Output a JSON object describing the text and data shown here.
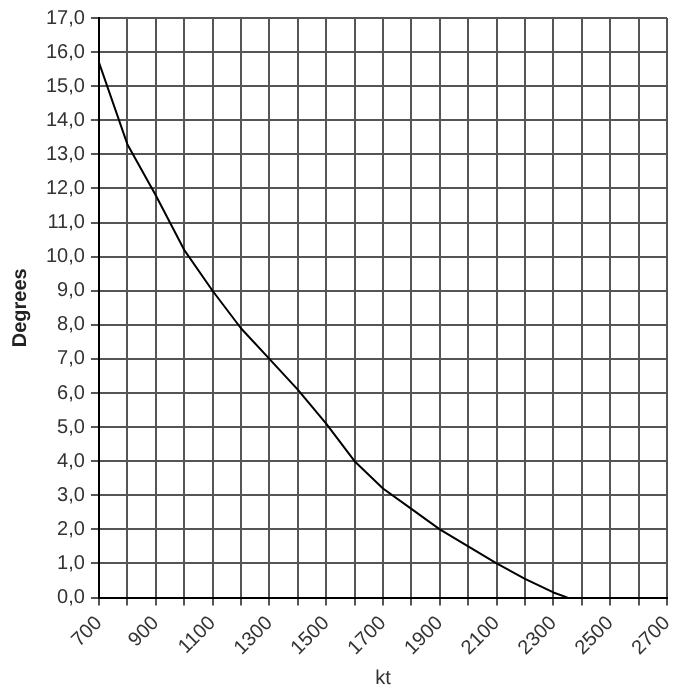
{
  "chart_data": {
    "type": "line",
    "ylabel": "Degrees",
    "xlabel": "kt",
    "x": [
      700,
      800,
      900,
      1000,
      1100,
      1200,
      1300,
      1400,
      1500,
      1600,
      1700,
      1800,
      1900,
      2000,
      2100,
      2200,
      2300,
      2350
    ],
    "series": [
      {
        "color": "#000000",
        "values": [
          15.7,
          13.3,
          11.8,
          10.2,
          9.0,
          7.9,
          7.0,
          6.1,
          5.1,
          4.0,
          3.2,
          2.6,
          2.0,
          1.5,
          1.0,
          0.55,
          0.15,
          0
        ]
      }
    ],
    "xlim": [
      700,
      2700
    ],
    "xticks": [
      700,
      {
        "value": 800,
        "label": null
      },
      900,
      {
        "value": 1000,
        "label": null
      },
      1100,
      {
        "value": 1200,
        "label": null
      },
      1300,
      {
        "value": 1400,
        "label": null
      },
      1500,
      {
        "value": 1600,
        "label": null
      },
      1700,
      {
        "value": 1800,
        "label": null
      },
      1900,
      {
        "value": 2000,
        "label": null
      },
      2100,
      {
        "value": 2200,
        "label": null
      },
      2300,
      {
        "value": 2400,
        "label": null
      },
      2500,
      {
        "value": 2600,
        "label": null
      },
      2700
    ],
    "ylim": [
      0,
      17
    ],
    "yticks": [
      {
        "value": 0,
        "label": "0,0"
      },
      {
        "value": 1,
        "label": "1,0"
      },
      {
        "value": 2,
        "label": "2,0"
      },
      {
        "value": 3,
        "label": "3,0"
      },
      {
        "value": 4,
        "label": "4,0"
      },
      {
        "value": 5,
        "label": "5,0"
      },
      {
        "value": 6,
        "label": "6,0"
      },
      {
        "value": 7,
        "label": "7,0"
      },
      {
        "value": 8,
        "label": "8,0"
      },
      {
        "value": 9,
        "label": "9,0"
      },
      {
        "value": 10,
        "label": "10,0"
      },
      {
        "value": 11,
        "label": "11,0"
      },
      {
        "value": 12,
        "label": "12,0"
      },
      {
        "value": 13,
        "label": "13,0"
      },
      {
        "value": 14,
        "label": "14,0"
      },
      {
        "value": 15,
        "label": "15,0"
      },
      {
        "value": 16,
        "label": "16,0"
      },
      {
        "value": 17,
        "label": "17,0"
      }
    ],
    "grid": true,
    "legend": false,
    "marker": "none",
    "line_style": "solid"
  }
}
